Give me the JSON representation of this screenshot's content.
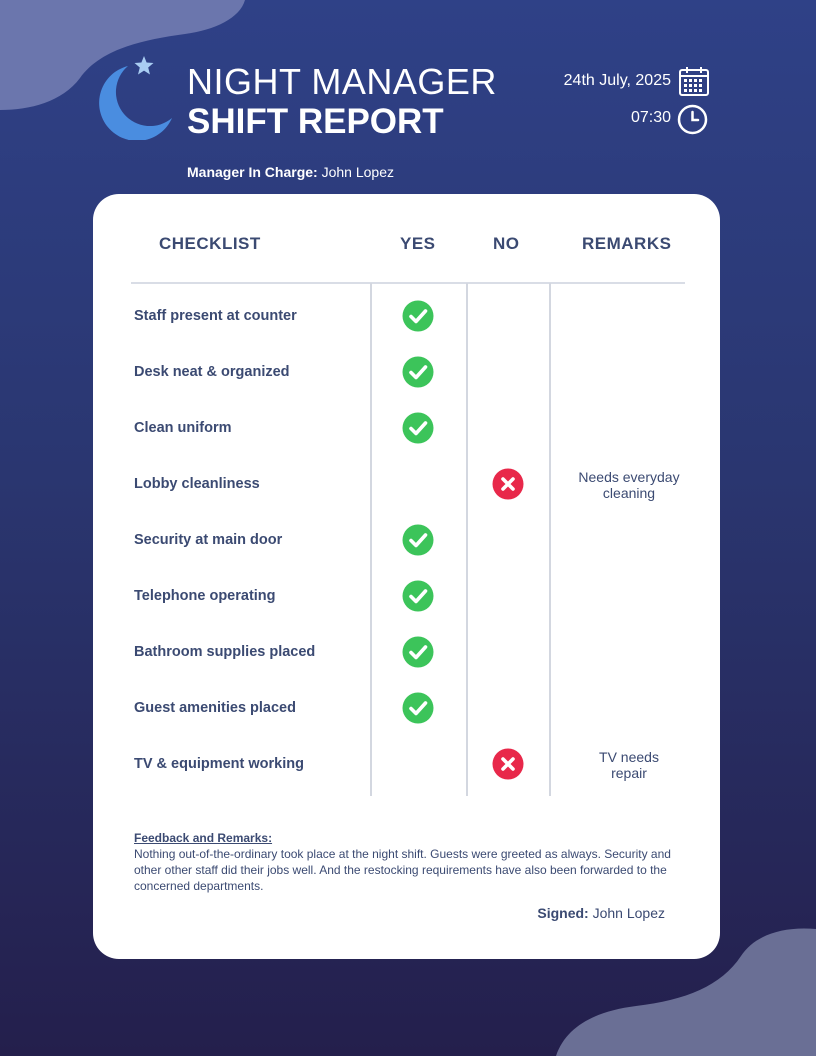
{
  "header": {
    "title_line1": "NIGHT MANAGER",
    "title_line2": "SHIFT REPORT",
    "date": "24th July, 2025",
    "time": "07:30",
    "manager_label": "Manager In Charge:",
    "manager_name": "John Lopez"
  },
  "table": {
    "columns": [
      "CHECKLIST",
      "YES",
      "NO",
      "REMARKS"
    ],
    "rows": [
      {
        "item": "Staff present at counter",
        "status": "yes",
        "remark_line1": "",
        "remark_line2": ""
      },
      {
        "item": "Desk neat & organized",
        "status": "yes",
        "remark_line1": "",
        "remark_line2": ""
      },
      {
        "item": "Clean uniform",
        "status": "yes",
        "remark_line1": "",
        "remark_line2": ""
      },
      {
        "item": "Lobby cleanliness",
        "status": "no",
        "remark_line1": "Needs everyday",
        "remark_line2": "cleaning"
      },
      {
        "item": "Security at main door",
        "status": "yes",
        "remark_line1": "",
        "remark_line2": ""
      },
      {
        "item": "Telephone operating",
        "status": "yes",
        "remark_line1": "",
        "remark_line2": ""
      },
      {
        "item": "Bathroom supplies placed",
        "status": "yes",
        "remark_line1": "",
        "remark_line2": ""
      },
      {
        "item": "Guest amenities placed",
        "status": "yes",
        "remark_line1": "",
        "remark_line2": ""
      },
      {
        "item": "TV &  equipment working",
        "status": "no",
        "remark_line1": "TV needs",
        "remark_line2": "repair"
      }
    ]
  },
  "feedback": {
    "title": "Feedback and Remarks:",
    "body": "Nothing out-of-the-ordinary took place at the night shift. Guests were greeted as always. Security and other other staff did their jobs well. And the restocking requirements have also been forwarded to the concerned departments."
  },
  "signature": {
    "label": "Signed:",
    "name": "John Lopez"
  },
  "colors": {
    "check_green": "#3cc45a",
    "cross_red": "#e8284a",
    "moon_blue": "#4a8de0",
    "text_navy": "#3b4a72"
  },
  "icons": {
    "yes": "check-circle-icon",
    "no": "x-circle-icon",
    "date": "calendar-icon",
    "time": "clock-icon",
    "logo": "moon-star-icon"
  }
}
